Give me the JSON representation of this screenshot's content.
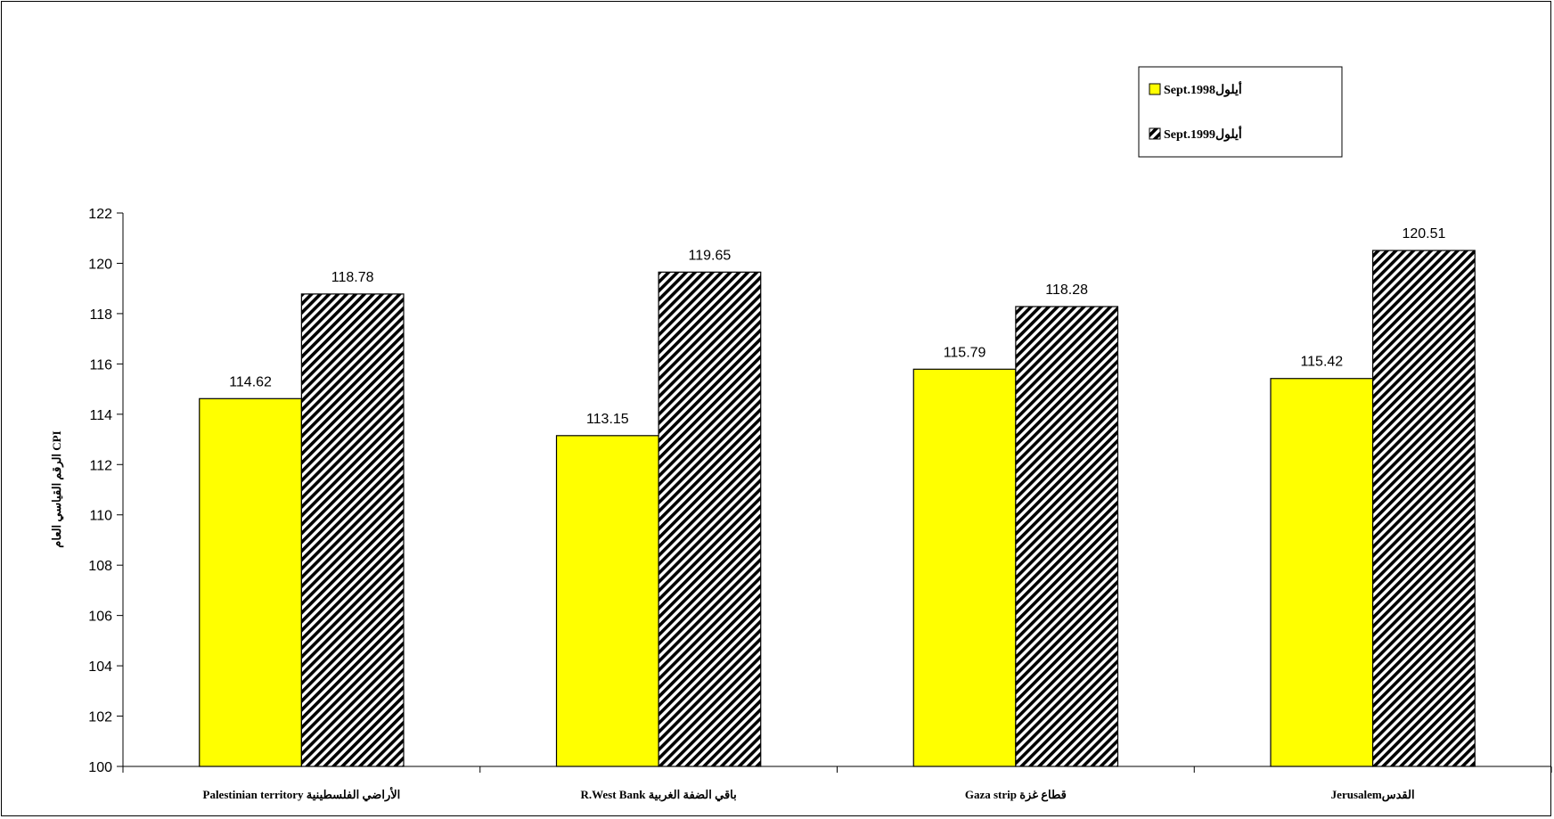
{
  "chart_data": {
    "type": "bar",
    "ylabel": "الرقم القياسي العام CPI",
    "ylim": [
      100,
      122
    ],
    "ytick_step": 2,
    "grid": false,
    "legend_position": "top-right",
    "categories": [
      "Palestinian territory الأراضي الفلسطينية",
      "R.West Bank باقي الضفة الغربية",
      "Gaza strip قطاع غزة",
      "Jerusalemالقدس"
    ],
    "series": [
      {
        "name": "Sept.أيلول1998",
        "fill": "#ffff00",
        "pattern": "solid",
        "values": [
          114.62,
          113.15,
          115.79,
          115.42
        ]
      },
      {
        "name": "Sept.أيلول1999",
        "fill": "#000000",
        "pattern": "diagonal-hatch",
        "values": [
          118.78,
          119.65,
          118.28,
          120.51
        ]
      }
    ],
    "data_labels": [
      [
        "114.62",
        "113.15",
        "115.79",
        "115.42"
      ],
      [
        "118.78",
        "119.65",
        "118.28",
        "120.51"
      ]
    ]
  }
}
